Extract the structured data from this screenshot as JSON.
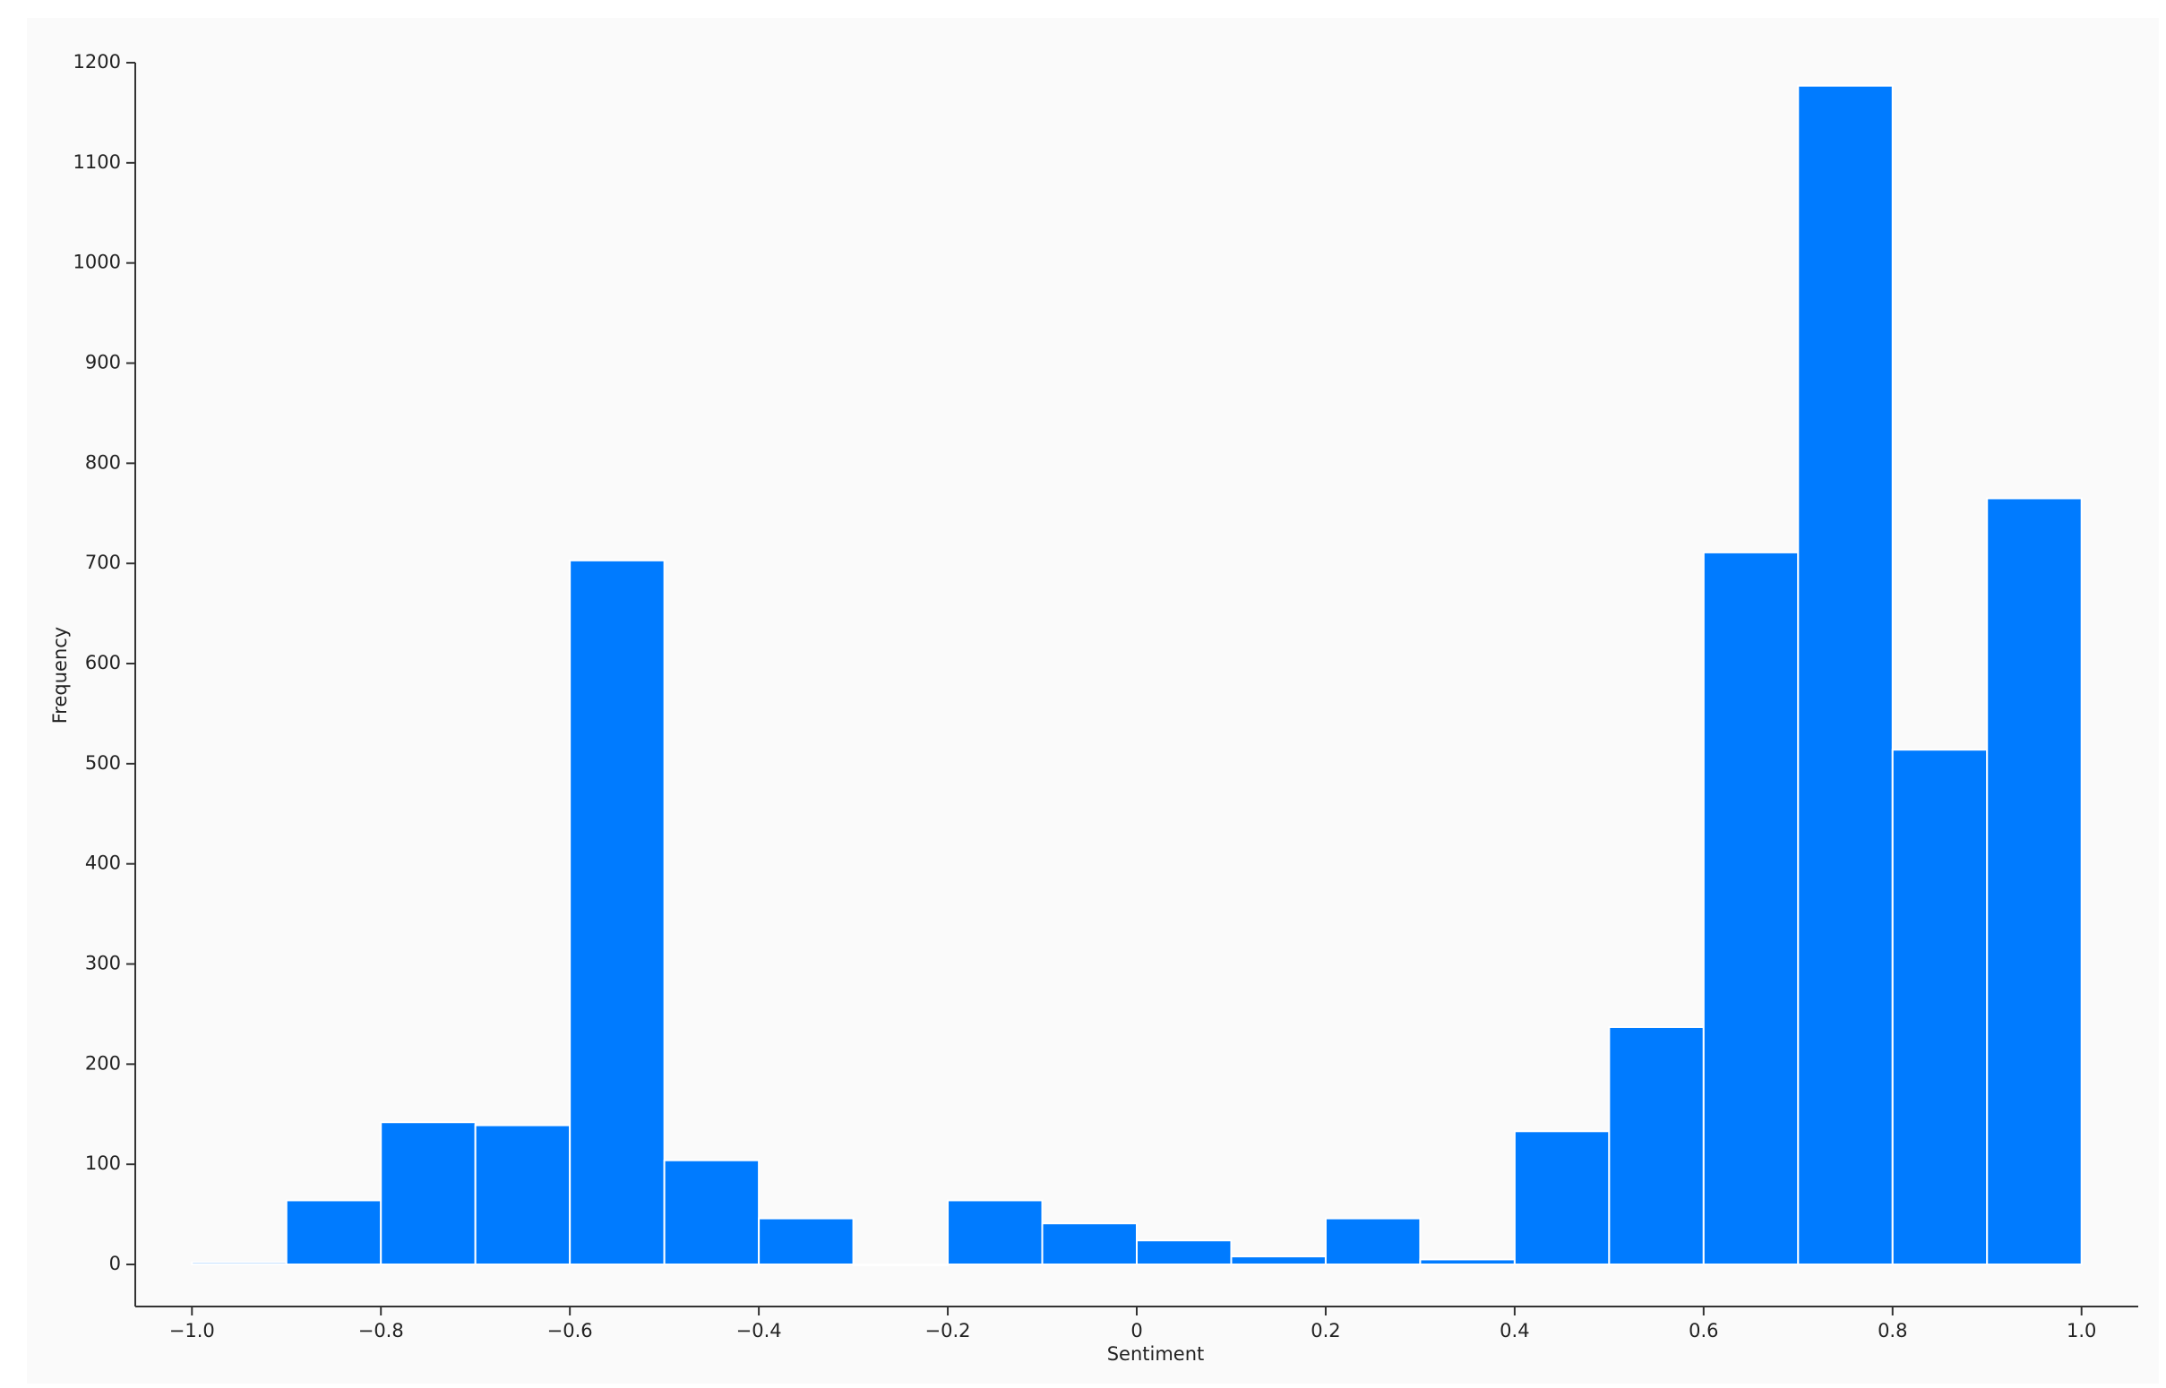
{
  "chart_data": {
    "type": "histogram",
    "x_label": "Sentiment",
    "y_label": "Frequency",
    "bins": [
      -1.0,
      -0.9,
      -0.8,
      -0.7,
      -0.6,
      -0.5,
      -0.4,
      -0.3,
      -0.2,
      -0.1,
      0,
      0.1,
      0.2,
      0.3,
      0.4,
      0.5,
      0.6,
      0.7,
      0.8,
      0.9,
      1.0
    ],
    "values": [
      2,
      64,
      142,
      139,
      703,
      104,
      46,
      0,
      64,
      41,
      24,
      8,
      46,
      5,
      133,
      237,
      711,
      1177,
      514,
      765
    ],
    "color": "#007bff",
    "xlim": [
      -1.06,
      1.06
    ],
    "ylim": [
      -42,
      1200
    ],
    "xticks": [
      {
        "value": -1.0,
        "label": "−1.0"
      },
      {
        "value": -0.8,
        "label": "−0.8"
      },
      {
        "value": -0.6,
        "label": "−0.6"
      },
      {
        "value": -0.4,
        "label": "−0.4"
      },
      {
        "value": -0.2,
        "label": "−0.2"
      },
      0,
      0.2,
      0.4,
      0.6,
      0.8,
      {
        "value": 1.0,
        "label": "1.0"
      }
    ],
    "yticks": [
      0,
      100,
      200,
      300,
      400,
      500,
      600,
      700,
      800,
      900,
      1000,
      1100,
      1200
    ]
  }
}
